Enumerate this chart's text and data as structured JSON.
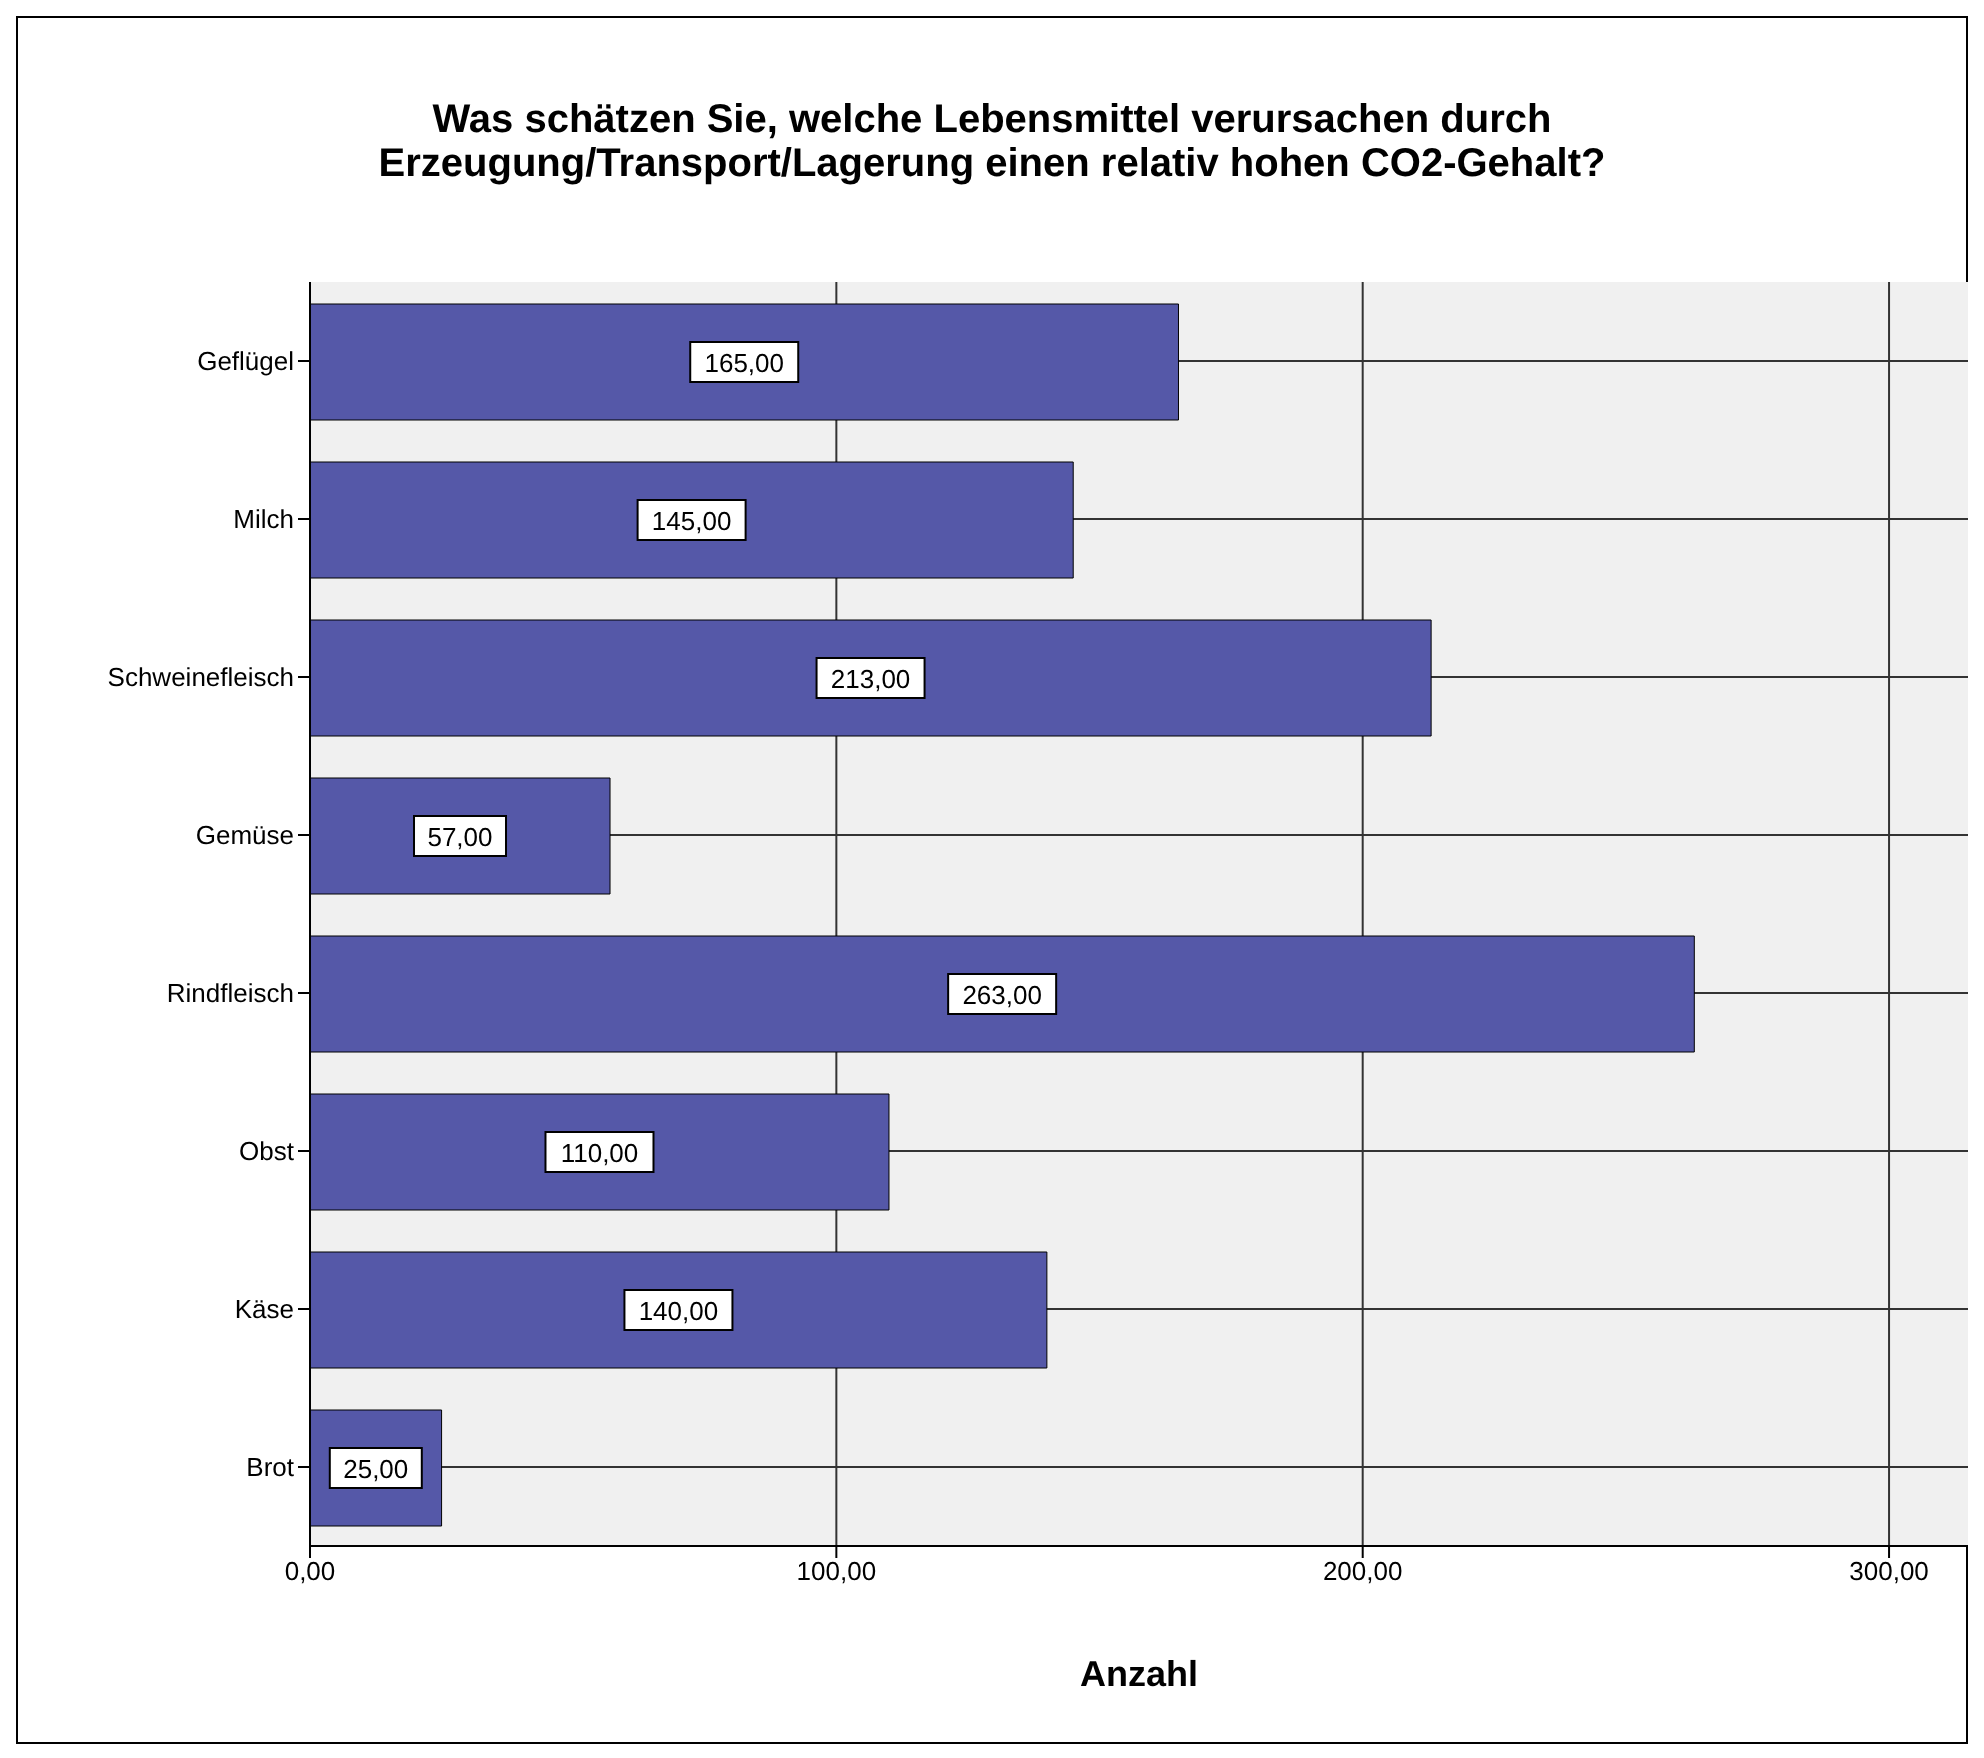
{
  "chart_data": {
    "type": "bar",
    "orientation": "horizontal",
    "title": "Was schätzen Sie, welche Lebensmittel verursachen durch Erzeugung/Transport/Lagerung einen relativ hohen CO2-Gehalt?",
    "xlabel": "Anzahl",
    "categories": [
      "Geflügel",
      "Milch",
      "Schweinefleisch",
      "Gemüse",
      "Rindfleisch",
      "Obst",
      "Käse",
      "Brot"
    ],
    "values": [
      165,
      145,
      213,
      57,
      263,
      110,
      140,
      25
    ],
    "value_labels": [
      "165,00",
      "145,00",
      "213,00",
      "57,00",
      "263,00",
      "110,00",
      "140,00",
      "25,00"
    ],
    "color": "#5558a8",
    "xlim": [
      0,
      315
    ],
    "xticks": [
      {
        "value": 0,
        "label": "0,00"
      },
      {
        "value": 100,
        "label": "100,00"
      },
      {
        "value": 200,
        "label": "200,00"
      },
      {
        "value": 300,
        "label": "300,00"
      }
    ],
    "grid": true
  }
}
